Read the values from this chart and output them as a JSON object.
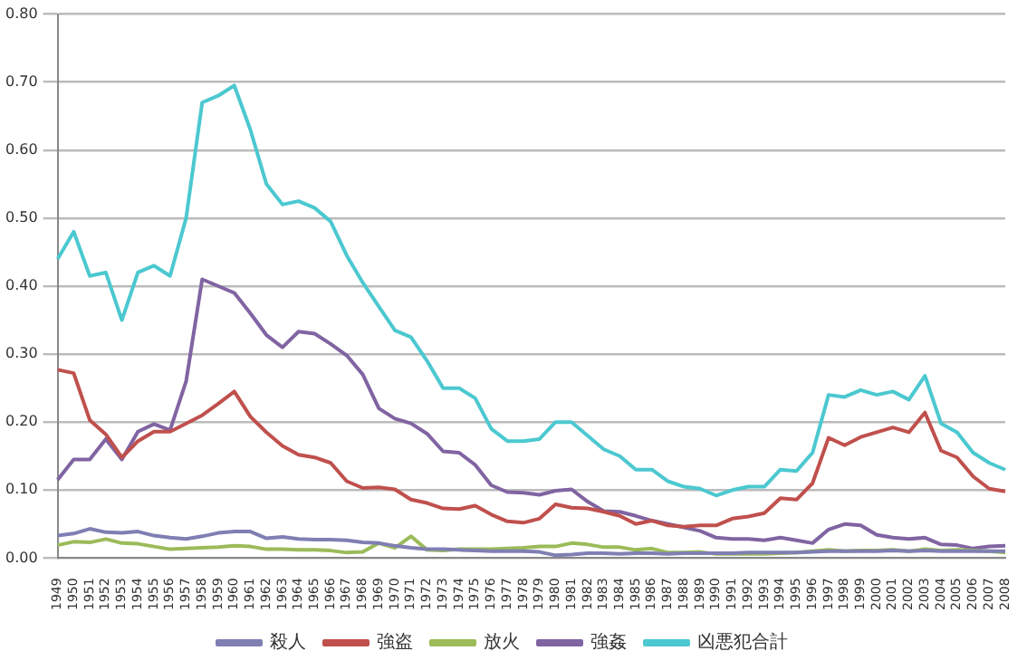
{
  "chart_data": {
    "type": "line",
    "categories": [
      "1949",
      "1950",
      "1951",
      "1952",
      "1953",
      "1954",
      "1955",
      "1956",
      "1957",
      "1958",
      "1959",
      "1960",
      "1961",
      "1962",
      "1963",
      "1964",
      "1965",
      "1966",
      "1967",
      "1968",
      "1969",
      "1970",
      "1971",
      "1972",
      "1973",
      "1974",
      "1975",
      "1976",
      "1977",
      "1978",
      "1979",
      "1980",
      "1981",
      "1982",
      "1983",
      "1984",
      "1985",
      "1986",
      "1987",
      "1988",
      "1989",
      "1990",
      "1991",
      "1992",
      "1993",
      "1994",
      "1995",
      "1996",
      "1997",
      "1998",
      "1999",
      "2000",
      "2001",
      "2002",
      "2003",
      "2004",
      "2005",
      "2006",
      "2007",
      "2008"
    ],
    "series": [
      {
        "name": "殺人",
        "color": "#7f7fb3",
        "values": [
          0.033,
          0.036,
          0.043,
          0.038,
          0.037,
          0.039,
          0.033,
          0.03,
          0.028,
          0.032,
          0.037,
          0.039,
          0.039,
          0.029,
          0.031,
          0.028,
          0.027,
          0.027,
          0.026,
          0.023,
          0.022,
          0.018,
          0.015,
          0.013,
          0.013,
          0.012,
          0.011,
          0.01,
          0.01,
          0.01,
          0.009,
          0.004,
          0.005,
          0.007,
          0.007,
          0.006,
          0.007,
          0.007,
          0.006,
          0.007,
          0.007,
          0.007,
          0.007,
          0.008,
          0.008,
          0.008,
          0.008,
          0.009,
          0.01,
          0.01,
          0.01,
          0.01,
          0.011,
          0.01,
          0.011,
          0.01,
          0.01,
          0.01,
          0.01,
          0.01
        ]
      },
      {
        "name": "強盗",
        "color": "#c0504d",
        "values": [
          0.277,
          0.272,
          0.203,
          0.182,
          0.148,
          0.172,
          0.186,
          0.186,
          0.198,
          0.21,
          0.227,
          0.245,
          0.208,
          0.185,
          0.165,
          0.152,
          0.148,
          0.14,
          0.113,
          0.103,
          0.104,
          0.101,
          0.086,
          0.081,
          0.073,
          0.072,
          0.077,
          0.064,
          0.054,
          0.052,
          0.058,
          0.079,
          0.074,
          0.073,
          0.068,
          0.062,
          0.05,
          0.055,
          0.048,
          0.046,
          0.048,
          0.048,
          0.058,
          0.061,
          0.066,
          0.088,
          0.086,
          0.11,
          0.177,
          0.166,
          0.178,
          0.185,
          0.192,
          0.185,
          0.214,
          0.158,
          0.148,
          0.12,
          0.102,
          0.098
        ]
      },
      {
        "name": "放火",
        "color": "#9bbb59",
        "values": [
          0.019,
          0.024,
          0.023,
          0.028,
          0.022,
          0.021,
          0.017,
          0.013,
          0.014,
          0.015,
          0.016,
          0.018,
          0.017,
          0.013,
          0.013,
          0.012,
          0.012,
          0.011,
          0.008,
          0.009,
          0.022,
          0.015,
          0.032,
          0.012,
          0.011,
          0.013,
          0.013,
          0.013,
          0.014,
          0.015,
          0.017,
          0.017,
          0.022,
          0.02,
          0.016,
          0.016,
          0.012,
          0.014,
          0.008,
          0.008,
          0.009,
          0.006,
          0.006,
          0.006,
          0.006,
          0.007,
          0.008,
          0.01,
          0.012,
          0.01,
          0.011,
          0.011,
          0.012,
          0.01,
          0.013,
          0.011,
          0.012,
          0.011,
          0.01,
          0.008
        ]
      },
      {
        "name": "強姦",
        "color": "#8064a2",
        "values": [
          0.115,
          0.145,
          0.145,
          0.175,
          0.145,
          0.186,
          0.197,
          0.188,
          0.26,
          0.41,
          0.4,
          0.39,
          0.36,
          0.328,
          0.31,
          0.333,
          0.33,
          0.315,
          0.298,
          0.27,
          0.22,
          0.205,
          0.198,
          0.183,
          0.157,
          0.155,
          0.137,
          0.107,
          0.097,
          0.096,
          0.093,
          0.099,
          0.101,
          0.083,
          0.069,
          0.068,
          0.062,
          0.055,
          0.05,
          0.045,
          0.04,
          0.03,
          0.028,
          0.028,
          0.026,
          0.03,
          0.026,
          0.022,
          0.042,
          0.05,
          0.048,
          0.034,
          0.03,
          0.028,
          0.03,
          0.02,
          0.019,
          0.014,
          0.017,
          0.018
        ]
      },
      {
        "name": "凶悪犯合計",
        "color": "#4bc8d0",
        "values": [
          0.44,
          0.48,
          0.415,
          0.42,
          0.35,
          0.42,
          0.43,
          0.415,
          0.5,
          0.67,
          0.68,
          0.695,
          0.63,
          0.55,
          0.52,
          0.525,
          0.515,
          0.495,
          0.445,
          0.405,
          0.37,
          0.335,
          0.325,
          0.29,
          0.25,
          0.25,
          0.235,
          0.19,
          0.172,
          0.172,
          0.175,
          0.2,
          0.2,
          0.18,
          0.16,
          0.15,
          0.13,
          0.13,
          0.113,
          0.105,
          0.102,
          0.092,
          0.1,
          0.105,
          0.105,
          0.13,
          0.128,
          0.155,
          0.24,
          0.237,
          0.247,
          0.24,
          0.245,
          0.233,
          0.268,
          0.198,
          0.185,
          0.155,
          0.14,
          0.13
        ]
      }
    ],
    "ylim": [
      0,
      0.8
    ],
    "yticks": [
      {
        "value": 0,
        "label": "0.00"
      },
      {
        "value": 0.1,
        "label": "0.10"
      },
      {
        "value": 0.2,
        "label": "0.20"
      },
      {
        "value": 0.3,
        "label": "0.30"
      },
      {
        "value": 0.4,
        "label": "0.40"
      },
      {
        "value": 0.5,
        "label": "0.50"
      },
      {
        "value": 0.6,
        "label": "0.60"
      },
      {
        "value": 0.7,
        "label": "0.70"
      },
      {
        "value": 0.8,
        "label": "0.80"
      }
    ],
    "grid": "y",
    "legend": "bottom",
    "marker": "none",
    "line_style": "solid"
  }
}
